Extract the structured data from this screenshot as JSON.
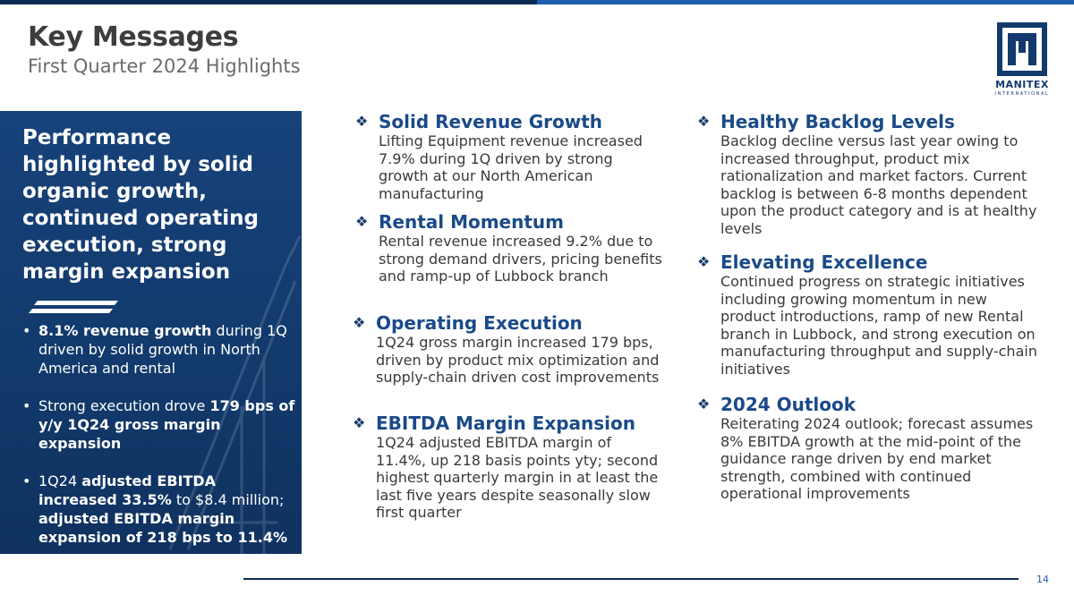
{
  "header": {
    "title": "Key Messages",
    "subtitle": "First Quarter 2024 Highlights"
  },
  "logo": {
    "name": "MANITEX",
    "sub": "INTERNATIONAL",
    "icon": "manitex-m-logo"
  },
  "colors": {
    "navy": "#0d2a52",
    "panel_blue": "#123a6c",
    "heading_blue": "#1a4a88",
    "accent_blue": "#1f5fae"
  },
  "panel": {
    "headline": "Performance highlighted by solid organic growth, continued  operating execution, strong margin expansion",
    "bullets": [
      {
        "b1": "8.1% revenue growth",
        "t1": " during 1Q driven by solid growth in North America and rental"
      },
      {
        "t1": "Strong execution drove ",
        "b1": "179 bps of y/y 1Q24 gross margin expansion"
      },
      {
        "t1": "1Q24 ",
        "b1": "adjusted EBITDA increased 33.5%",
        "t2": " to $8.4 million; ",
        "b2": "adjusted EBITDA margin expansion of 218 bps to 11.4%"
      }
    ]
  },
  "left_column": [
    {
      "heading": "Solid Revenue Growth",
      "body": "Lifting Equipment revenue increased 7.9% during 1Q driven by strong growth at our North American manufacturing"
    },
    {
      "heading": "Rental Momentum",
      "body": "Rental revenue increased 9.2% due to strong demand drivers, pricing benefits and ramp-up of Lubbock branch"
    },
    {
      "heading": "Operating Execution",
      "body": "1Q24 gross margin increased 179 bps, driven by product mix optimization and supply-chain driven cost improvements"
    },
    {
      "heading": "EBITDA Margin Expansion",
      "body": "1Q24 adjusted EBITDA margin of 11.4%, up 218 basis points yty; second highest quarterly margin in at least the last five years despite seasonally slow first quarter"
    }
  ],
  "right_column": [
    {
      "heading": "Healthy Backlog Levels",
      "body": "Backlog decline versus last year owing to increased throughput, product mix rationalization and market factors. Current backlog is between 6-8 months dependent upon the product category and is at healthy levels"
    },
    {
      "heading": "Elevating Excellence",
      "body": "Continued progress on strategic initiatives including growing momentum in new product introductions, ramp of new Rental branch in Lubbock, and strong execution on manufacturing throughput and supply-chain initiatives"
    },
    {
      "heading": "2024 Outlook",
      "body": "Reiterating 2024 outlook; forecast assumes 8% EBITDA growth at the mid-point of the guidance range driven by end market strength, combined with continued operational improvements"
    }
  ],
  "bullet_glyph": "❖",
  "footer": {
    "page_number": "14"
  }
}
